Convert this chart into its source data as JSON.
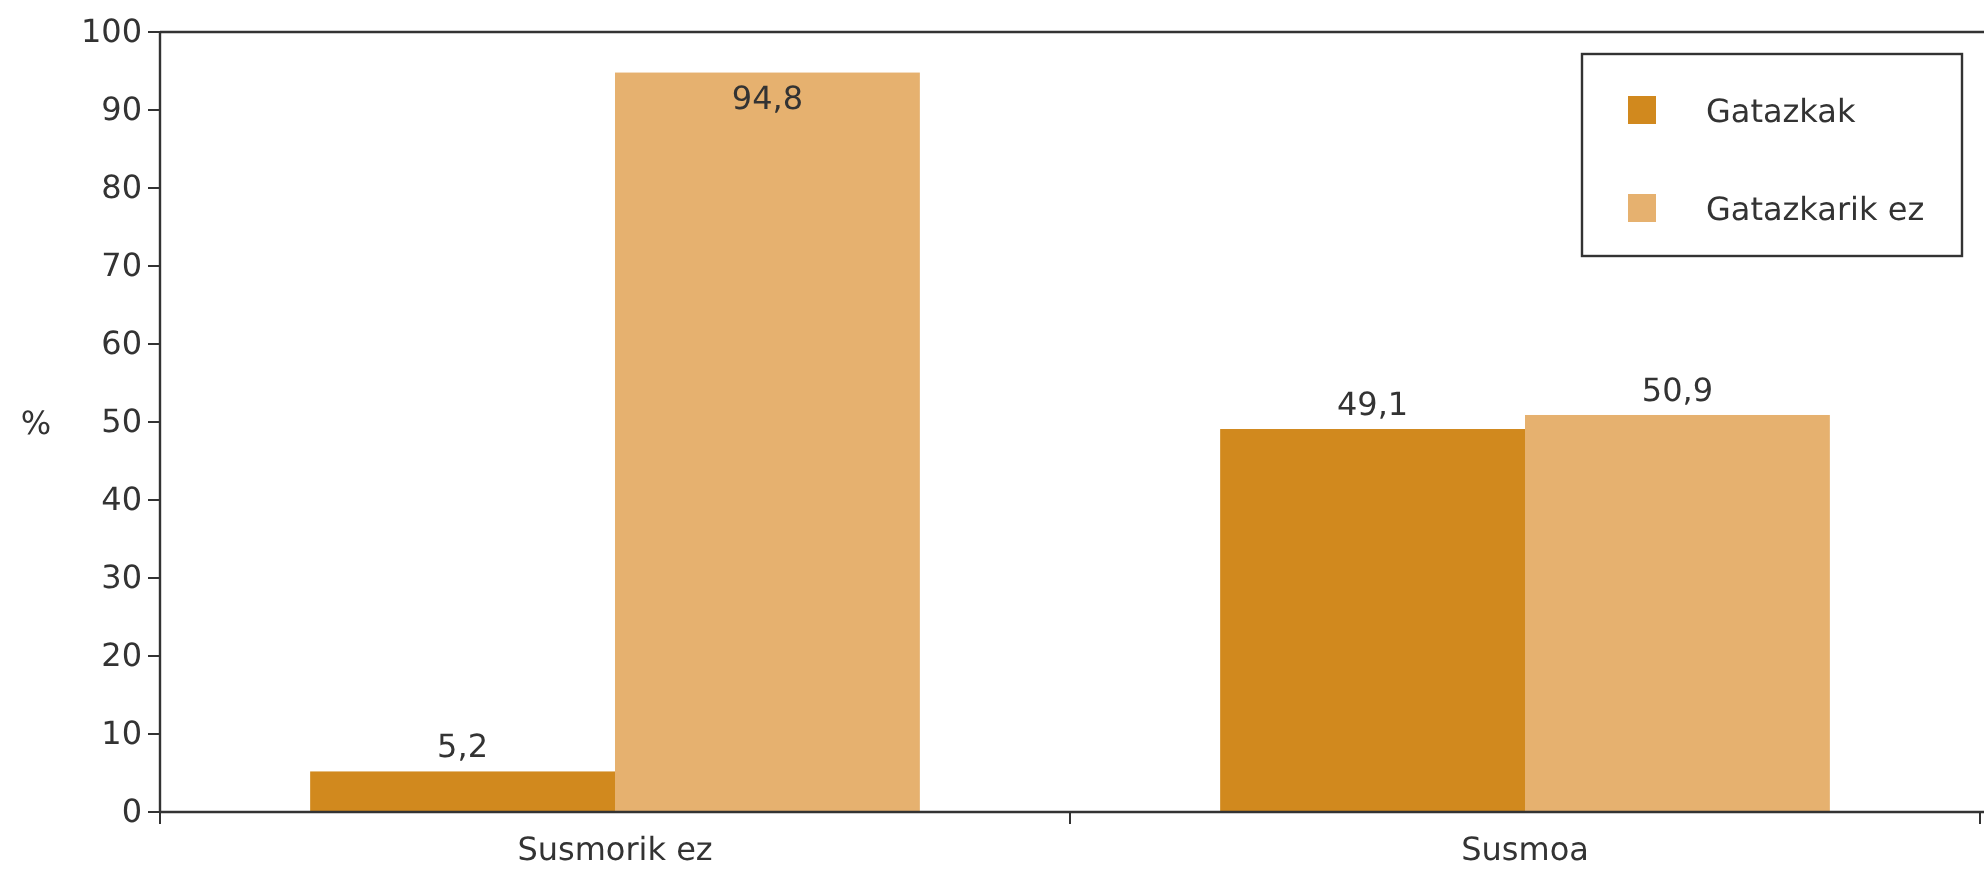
{
  "chart_data": {
    "type": "bar",
    "ylabel": "%",
    "categories": [
      "Susmorik ez",
      "Susmoa"
    ],
    "series": [
      {
        "name": "Gatazkak",
        "color": "#d1891e",
        "values": [
          5.2,
          49.1
        ],
        "value_labels": [
          "5,2",
          "49,1"
        ]
      },
      {
        "name": "Gatazkarik ez",
        "color": "#e6b16f",
        "values": [
          94.8,
          50.9
        ],
        "value_labels": [
          "94,8",
          "50,9"
        ]
      }
    ],
    "ylim": [
      0,
      100
    ],
    "yticks": [
      0,
      10,
      20,
      30,
      40,
      50,
      60,
      70,
      80,
      90,
      100
    ],
    "grid": false,
    "legend": "top right"
  }
}
